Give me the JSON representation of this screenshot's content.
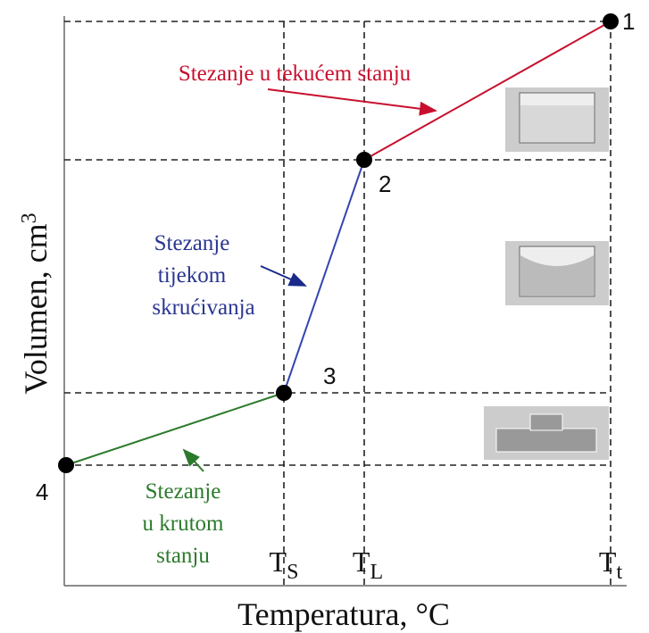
{
  "y_axis_label": {
    "text": "Volumen, cm",
    "sup": "3"
  },
  "x_axis_label": "Temperatura, °C",
  "x_marks": [
    {
      "main": "T",
      "sub": "S"
    },
    {
      "main": "T",
      "sub": "L"
    },
    {
      "main": "T",
      "sub": "t"
    }
  ],
  "points": [
    "1",
    "2",
    "3",
    "4"
  ],
  "annotations": {
    "liquid": [
      "Stezanje u tekućem stanju"
    ],
    "solidification": [
      "Stezanje",
      "tijekom",
      "skrućivanja"
    ],
    "solid": [
      "Stezanje",
      "u krutom",
      "stanju"
    ]
  }
}
